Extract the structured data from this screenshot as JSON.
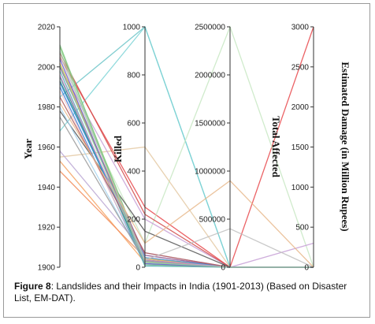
{
  "caption": {
    "label": "Figure 8",
    "text": ": Landslides and their Impacts in India (1901-2013) (Based on Disaster List, EM-DAT)."
  },
  "chart_data": {
    "type": "parallel-coordinates",
    "title": "",
    "grid": false,
    "legend": "none",
    "axes": [
      {
        "name": "Year",
        "min": 1900,
        "max": 2020,
        "ticks": [
          "1900",
          "1920",
          "1940",
          "1960",
          "1980",
          "2000",
          "2020"
        ]
      },
      {
        "name": "Killed",
        "min": 0,
        "max": 1000,
        "ticks": [
          "0",
          "200",
          "400",
          "600",
          "800",
          "1000"
        ]
      },
      {
        "name": "Total Affected",
        "min": 0,
        "max": 2500000,
        "ticks": [
          "0",
          "500000",
          "1000000",
          "1500000",
          "2000000",
          "2500000"
        ]
      },
      {
        "name": "Estimated Damage  (in Million Rupees)",
        "min": 0,
        "max": 3000,
        "ticks": [
          "0",
          "500",
          "1000",
          "1500",
          "2000",
          "2500",
          "3000"
        ]
      }
    ],
    "series": [
      {
        "color": "#e8484b",
        "values": [
          2005,
          250,
          0,
          3000
        ]
      },
      {
        "color": "#6ec6c9",
        "values": [
          1985,
          1000,
          0,
          0
        ]
      },
      {
        "color": "#7dd3d6",
        "values": [
          1968,
          1000,
          0,
          0
        ]
      },
      {
        "color": "#c8e8c3",
        "values": [
          2000,
          100,
          2500000,
          0
        ]
      },
      {
        "color": "#e4c9a3",
        "values": [
          1955,
          500,
          0,
          0
        ]
      },
      {
        "color": "#bba7d3",
        "values": [
          1958,
          60,
          0,
          0
        ]
      },
      {
        "color": "#f4a261",
        "values": [
          1953,
          20,
          0,
          0
        ]
      },
      {
        "color": "#f28c59",
        "values": [
          1948,
          40,
          0,
          0
        ]
      },
      {
        "color": "#c7a0d6",
        "values": [
          2000,
          200,
          0,
          300
        ]
      },
      {
        "color": "#d24a4a",
        "values": [
          2007,
          220,
          0,
          0
        ]
      },
      {
        "color": "#555555",
        "values": [
          1978,
          150,
          0,
          0
        ]
      },
      {
        "color": "#7bc96f",
        "values": [
          2010,
          30,
          0,
          0
        ]
      },
      {
        "color": "#2e8b8b",
        "values": [
          1995,
          20,
          0,
          0
        ]
      },
      {
        "color": "#3a7bd5",
        "values": [
          1990,
          10,
          0,
          0
        ]
      },
      {
        "color": "#a7d3f0",
        "values": [
          1980,
          15,
          0,
          0
        ]
      },
      {
        "color": "#8b4d8b",
        "values": [
          2000,
          50,
          0,
          0
        ]
      },
      {
        "color": "#9ad0a5",
        "values": [
          2008,
          25,
          0,
          0
        ]
      },
      {
        "color": "#1f6f7a",
        "values": [
          1993,
          30,
          0,
          0
        ]
      },
      {
        "color": "#f7c6c6",
        "values": [
          1988,
          20,
          0,
          0
        ]
      },
      {
        "color": "#e9b44c",
        "values": [
          2002,
          35,
          0,
          0
        ]
      },
      {
        "color": "#4fb0b5",
        "values": [
          1998,
          5,
          0,
          0
        ]
      },
      {
        "color": "#3b9ae1",
        "values": [
          1992,
          40,
          0,
          0
        ]
      },
      {
        "color": "#b15a5a",
        "values": [
          1985,
          60,
          0,
          0
        ]
      },
      {
        "color": "#86c98a",
        "values": [
          2011,
          10,
          0,
          0
        ]
      },
      {
        "color": "#999999",
        "values": [
          1975,
          25,
          0,
          0
        ]
      },
      {
        "color": "#6a5acd",
        "values": [
          2004,
          15,
          0,
          0
        ]
      },
      {
        "color": "#d98fd0",
        "values": [
          1996,
          30,
          0,
          0
        ]
      },
      {
        "color": "#c0c0c0",
        "values": [
          2006,
          30,
          400000,
          0
        ]
      },
      {
        "color": "#e7b98c",
        "values": [
          1982,
          100,
          900000,
          0
        ]
      },
      {
        "color": "#8fd3a0",
        "values": [
          2001,
          20,
          0,
          0
        ]
      }
    ]
  }
}
